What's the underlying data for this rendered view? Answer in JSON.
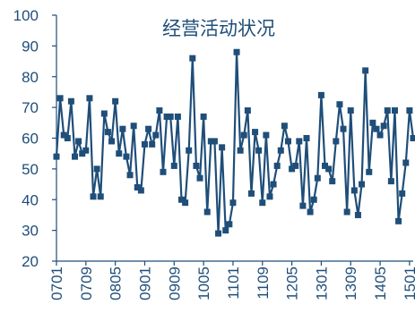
{
  "chart_data": {
    "type": "line",
    "title": "经营活动状况",
    "xlabel": "",
    "ylabel": "",
    "ylim": [
      20,
      100
    ],
    "yticks": [
      20,
      30,
      40,
      50,
      60,
      70,
      80,
      90,
      100
    ],
    "x_tick_labels": [
      "0701",
      "0709",
      "0805",
      "0901",
      "0909",
      "1005",
      "1101",
      "1109",
      "1205",
      "1301",
      "1309",
      "1405",
      "1501"
    ],
    "line_color": "#1f4e79",
    "marker": "square",
    "series": [
      {
        "values": [
          54,
          73,
          61,
          60,
          72,
          54,
          59,
          55,
          56,
          73,
          41,
          50,
          41,
          68,
          62,
          59,
          72,
          55,
          63,
          54,
          48,
          64,
          44,
          43,
          58,
          63,
          58,
          61,
          69,
          49,
          67,
          67,
          51,
          67,
          40,
          39,
          56,
          86,
          51,
          47,
          67,
          36,
          59,
          59,
          29,
          57,
          30,
          32,
          39,
          88,
          56,
          61,
          69,
          42,
          62,
          56,
          39,
          61,
          41,
          45,
          51,
          56,
          64,
          59,
          50,
          51,
          59,
          38,
          60,
          36,
          40,
          47,
          74,
          51,
          50,
          46,
          59,
          71,
          63,
          36,
          69,
          43,
          35,
          45,
          82,
          49,
          65,
          63,
          61,
          64,
          69,
          46,
          69,
          33,
          42,
          52,
          69,
          60
        ]
      }
    ]
  }
}
